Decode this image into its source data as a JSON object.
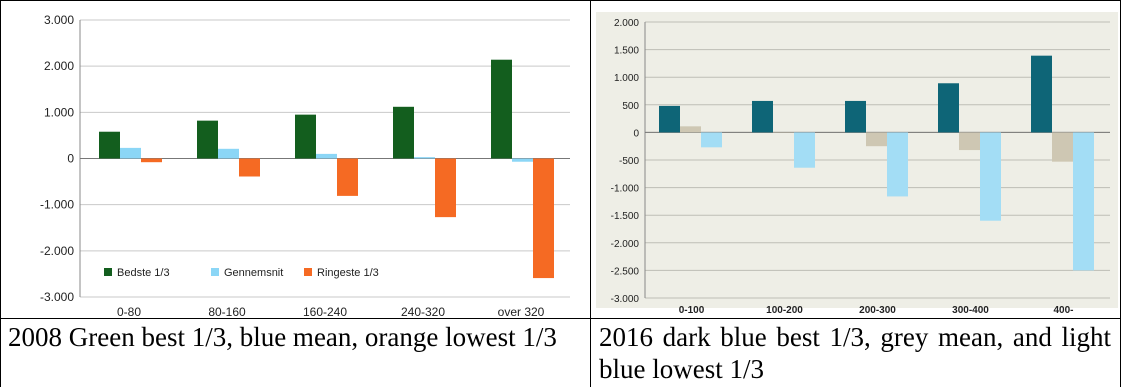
{
  "chart_data": [
    {
      "type": "bar",
      "categories": [
        "0-80",
        "80-160",
        "160-240",
        "240-320",
        "over 320"
      ],
      "series": [
        {
          "name": "Bedste 1/3",
          "color": "#135E1E",
          "values": [
            580,
            820,
            950,
            1120,
            2140
          ]
        },
        {
          "name": "Gennemsnit",
          "color": "#8BD6F6",
          "values": [
            230,
            210,
            100,
            30,
            -70
          ]
        },
        {
          "name": "Ringeste 1/3",
          "color": "#F56A23",
          "values": [
            -80,
            -390,
            -810,
            -1270,
            -2590
          ]
        }
      ],
      "ylim": [
        -3000,
        3000
      ],
      "yticks": [
        3000,
        2000,
        1000,
        0,
        -1000,
        -2000,
        -3000
      ],
      "ytick_labels": [
        "3.000",
        "2.000",
        "1.000",
        "0",
        "-1.000",
        "-2.000",
        "-3.000"
      ],
      "grid": true,
      "legend_position": "bottom-left"
    },
    {
      "type": "bar",
      "categories": [
        "0-100",
        "100-200",
        "200-300",
        "300-400",
        "400-"
      ],
      "series": [
        {
          "color": "#0E6577",
          "values": [
            480,
            570,
            570,
            890,
            1390
          ]
        },
        {
          "color": "#CEC7B3",
          "values": [
            110,
            0,
            -250,
            -320,
            -530
          ]
        },
        {
          "color": "#A3DDF5",
          "values": [
            -270,
            -640,
            -1160,
            -1600,
            -2500
          ]
        }
      ],
      "ylim": [
        -3000,
        2000
      ],
      "yticks": [
        2000,
        1500,
        1000,
        500,
        0,
        -500,
        -1000,
        -1500,
        -2000,
        -2500,
        -3000
      ],
      "ytick_labels": [
        "2.000",
        "1.500",
        "1.000",
        "500",
        "0",
        "-500",
        "-1.000",
        "-1.500",
        "-2.000",
        "-2.500",
        "-3.000"
      ],
      "grid": true,
      "background": "#EEEEE6"
    }
  ],
  "captions": {
    "left": "2008 Green best 1/3, blue mean, orange lowest 1/3",
    "right": "2016 dark blue best 1/3, grey mean, and light blue lowest 1/3"
  }
}
